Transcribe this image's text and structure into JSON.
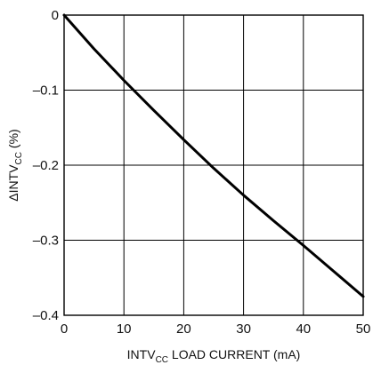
{
  "chart_data": {
    "type": "line",
    "title": "",
    "xlabel": {
      "main": "INTV",
      "sub": "CC",
      "rest": " LOAD CURRENT (mA)"
    },
    "ylabel": {
      "main": "ΔINTV",
      "sub": "CC",
      "rest": " (%)"
    },
    "xlim": [
      0,
      50
    ],
    "ylim": [
      -0.4,
      0
    ],
    "x_ticks": [
      0,
      10,
      20,
      30,
      40,
      50
    ],
    "y_ticks": [
      0,
      -0.1,
      -0.2,
      -0.3,
      -0.4
    ],
    "x_tick_labels": [
      "0",
      "10",
      "20",
      "30",
      "40",
      "50"
    ],
    "y_tick_labels": [
      "0",
      "–0.1",
      "–0.2",
      "–0.3",
      "–0.4"
    ],
    "grid": true,
    "series": [
      {
        "x": [
          0,
          5,
          10,
          15,
          20,
          25,
          30,
          35,
          40,
          45,
          50
        ],
        "values": [
          0,
          -0.045,
          -0.087,
          -0.127,
          -0.166,
          -0.204,
          -0.24,
          -0.274,
          -0.307,
          -0.341,
          -0.375
        ],
        "color": "#000000"
      }
    ]
  }
}
